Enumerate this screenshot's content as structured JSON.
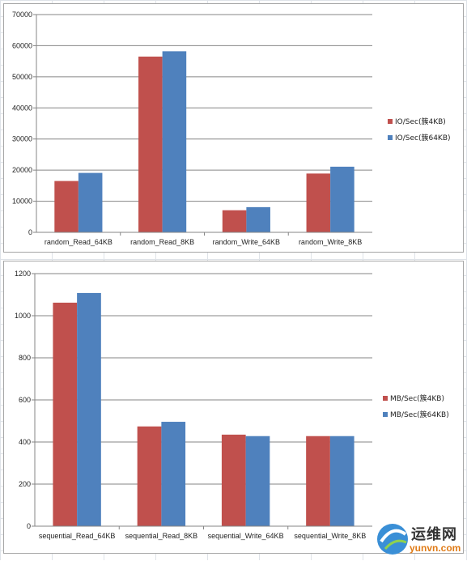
{
  "colors": {
    "series1": "#c0504d",
    "series2": "#4f81bd",
    "grid": "#868686",
    "axis": "#868686"
  },
  "chart_data": [
    {
      "type": "bar",
      "categories": [
        "random_Read_64KB",
        "random_Read_8KB",
        "random_Write_64KB",
        "random_Write_8KB"
      ],
      "series": [
        {
          "name": "IO/Sec(簇4KB)",
          "values": [
            16500,
            56500,
            7100,
            18900
          ]
        },
        {
          "name": "IO/Sec(簇64KB)",
          "values": [
            19100,
            58200,
            8100,
            21100
          ]
        }
      ],
      "ylim": [
        0,
        70000
      ],
      "yticks": [
        0,
        10000,
        20000,
        30000,
        40000,
        50000,
        60000,
        70000
      ],
      "grid": true,
      "legend": "right"
    },
    {
      "type": "bar",
      "categories": [
        "sequential_Read_64KB",
        "sequential_Read_8KB",
        "sequential_Write_64KB",
        "sequential_Write_8KB"
      ],
      "series": [
        {
          "name": "MB/Sec(簇4KB)",
          "values": [
            1062,
            474,
            435,
            428
          ]
        },
        {
          "name": "MB/Sec(簇64KB)",
          "values": [
            1108,
            496,
            428,
            428
          ]
        }
      ],
      "ylim": [
        0,
        1200
      ],
      "yticks": [
        0,
        200,
        400,
        600,
        800,
        1000,
        1200
      ],
      "grid": true,
      "legend": "right"
    }
  ],
  "watermark": {
    "logo_text": "运维网",
    "url": "yunvn.com"
  }
}
